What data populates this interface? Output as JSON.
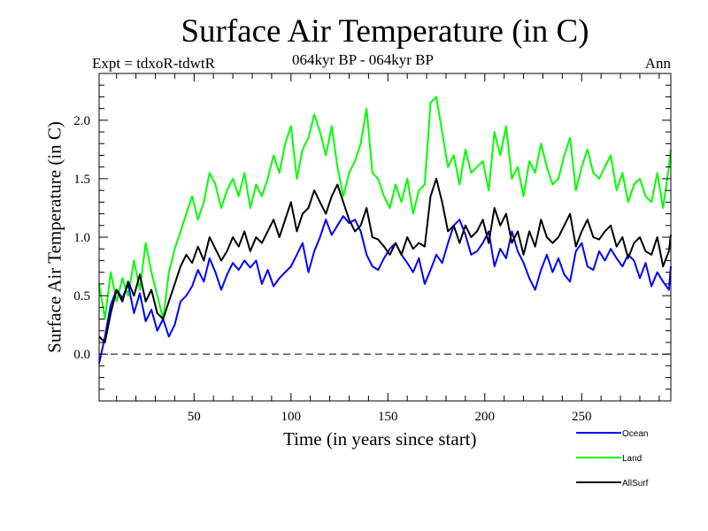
{
  "chart_data": {
    "type": "line",
    "title": "Surface Air Temperature (in C)",
    "subtitle_left": "Expt = tdxoR-tdwtR",
    "subtitle_center": "064kyr BP - 064kyr BP",
    "subtitle_right": "Ann",
    "xlabel": "Time (in years since start)",
    "ylabel": "Surface Air Temperature (in C)",
    "xlim": [
      1,
      296
    ],
    "ylim": [
      -0.4,
      2.4
    ],
    "x_ticks": [
      50,
      100,
      150,
      200,
      250
    ],
    "x_tick_labels": [
      "50",
      "100",
      "150",
      "200",
      "250"
    ],
    "y_ticks": [
      0.0,
      0.5,
      1.0,
      1.5,
      2.0
    ],
    "y_tick_labels": [
      "0.0",
      "0.5",
      "1.0",
      "1.5",
      "2.0"
    ],
    "reference_line": {
      "y": 0.0,
      "style": "dashed"
    },
    "grid": false,
    "legend_position": "bottom-right",
    "x_start": 1,
    "x_step": 3,
    "series": [
      {
        "name": "Ocean",
        "color": "#0000ff",
        "values": [
          -0.08,
          0.15,
          0.42,
          0.55,
          0.48,
          0.6,
          0.35,
          0.52,
          0.28,
          0.38,
          0.2,
          0.3,
          0.15,
          0.25,
          0.45,
          0.5,
          0.58,
          0.72,
          0.62,
          0.82,
          0.7,
          0.55,
          0.68,
          0.78,
          0.72,
          0.8,
          0.74,
          0.8,
          0.6,
          0.72,
          0.58,
          0.65,
          0.7,
          0.75,
          0.85,
          0.95,
          0.7,
          0.88,
          1.0,
          1.15,
          1.02,
          1.1,
          1.18,
          1.12,
          1.15,
          1.05,
          0.85,
          0.75,
          0.72,
          0.82,
          0.9,
          0.95,
          0.85,
          0.78,
          0.7,
          0.82,
          0.6,
          0.72,
          0.85,
          0.78,
          0.95,
          1.1,
          1.15,
          1.02,
          0.85,
          0.88,
          0.95,
          1.05,
          0.75,
          0.9,
          0.82,
          1.05,
          0.88,
          0.78,
          0.65,
          0.55,
          0.72,
          0.85,
          0.7,
          0.82,
          0.68,
          0.62,
          0.88,
          0.95,
          0.75,
          0.72,
          0.88,
          0.8,
          0.9,
          0.82,
          0.75,
          0.85,
          0.8,
          0.65,
          0.78,
          0.58,
          0.7,
          0.62,
          0.55,
          0.75
        ]
      },
      {
        "name": "Land",
        "color": "#00ff00",
        "values": [
          0.6,
          0.3,
          0.7,
          0.45,
          0.65,
          0.5,
          0.8,
          0.55,
          0.95,
          0.7,
          0.5,
          0.3,
          0.7,
          0.9,
          1.05,
          1.2,
          1.35,
          1.15,
          1.3,
          1.55,
          1.45,
          1.25,
          1.4,
          1.5,
          1.35,
          1.55,
          1.25,
          1.45,
          1.35,
          1.5,
          1.7,
          1.55,
          1.8,
          1.95,
          1.5,
          1.75,
          1.85,
          2.05,
          1.9,
          1.7,
          1.95,
          1.6,
          1.35,
          1.55,
          1.65,
          1.8,
          2.1,
          1.55,
          1.5,
          1.35,
          1.25,
          1.45,
          1.3,
          1.5,
          1.2,
          1.4,
          1.45,
          2.15,
          2.2,
          1.9,
          1.6,
          1.7,
          1.45,
          1.75,
          1.55,
          1.6,
          1.65,
          1.4,
          1.9,
          1.7,
          1.95,
          1.5,
          1.6,
          1.35,
          1.65,
          1.55,
          1.8,
          1.6,
          1.45,
          1.5,
          1.7,
          1.85,
          1.4,
          1.6,
          1.75,
          1.55,
          1.5,
          1.6,
          1.7,
          1.4,
          1.55,
          1.3,
          1.45,
          1.5,
          1.35,
          1.3,
          1.55,
          1.25,
          1.6,
          1.75
        ]
      },
      {
        "name": "AllSurf",
        "color": "#000000",
        "values": [
          0.15,
          0.1,
          0.35,
          0.55,
          0.45,
          0.62,
          0.5,
          0.68,
          0.45,
          0.55,
          0.35,
          0.3,
          0.45,
          0.6,
          0.75,
          0.85,
          0.78,
          0.92,
          0.8,
          1.0,
          0.9,
          0.8,
          0.88,
          1.0,
          0.92,
          1.05,
          0.88,
          1.0,
          0.95,
          1.05,
          1.15,
          1.0,
          1.15,
          1.3,
          1.05,
          1.2,
          1.25,
          1.4,
          1.3,
          1.2,
          1.35,
          1.45,
          1.3,
          1.15,
          1.05,
          1.1,
          1.25,
          1.0,
          0.98,
          0.92,
          0.85,
          0.95,
          0.85,
          1.0,
          0.9,
          0.95,
          0.92,
          1.35,
          1.5,
          1.3,
          1.05,
          1.1,
          0.95,
          1.1,
          1.0,
          1.05,
          1.15,
          0.95,
          1.25,
          1.1,
          1.2,
          0.95,
          1.05,
          0.85,
          1.05,
          0.92,
          1.15,
          1.0,
          0.95,
          1.0,
          1.1,
          1.2,
          0.92,
          1.05,
          1.15,
          1.0,
          0.98,
          1.05,
          1.1,
          0.92,
          1.0,
          0.82,
          0.95,
          1.0,
          0.88,
          0.85,
          1.0,
          0.75,
          0.88,
          1.02
        ]
      }
    ]
  },
  "legend": {
    "items": [
      {
        "label": "Ocean",
        "color": "#0000ff"
      },
      {
        "label": "Land",
        "color": "#00ff00"
      },
      {
        "label": "AllSurf",
        "color": "#000000"
      }
    ]
  }
}
